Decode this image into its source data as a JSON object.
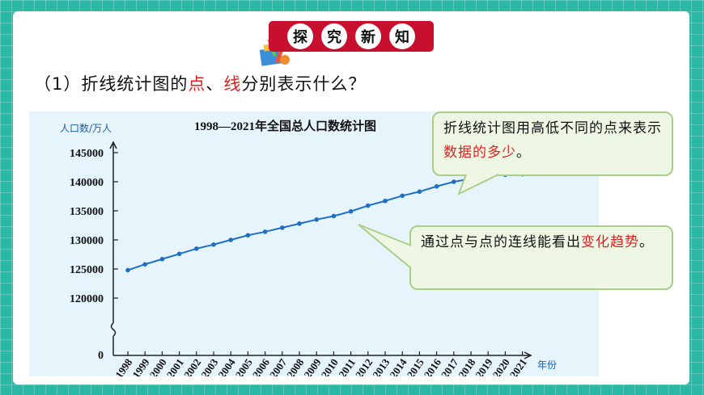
{
  "header": {
    "title_chars": [
      "探",
      "究",
      "新",
      "知"
    ],
    "decor_icon": "school-supplies-icon"
  },
  "question": {
    "prefix": "（1）折线统计图的",
    "highlight_point": "点",
    "separator": "、",
    "highlight_line": "线",
    "suffix": "分别表示什么？"
  },
  "callouts": {
    "points": {
      "text": "折线统计图用高低不同的点来表示",
      "highlight": "数据的多少",
      "end": "。"
    },
    "line": {
      "text": "通过点与点的连线能看出",
      "highlight": "变化趋势",
      "end": "。"
    }
  },
  "colors": {
    "accent_red": "#c8102e",
    "line_blue": "#1f6fc5",
    "background_teal": "#2bb9a6"
  },
  "chart_data": {
    "type": "line",
    "title": "1998—2021年全国总人口数统计图",
    "ylabel": "人口数/万人",
    "xlabel": "年份",
    "y_zero_label": "0",
    "y_ticks": [
      120000,
      125000,
      130000,
      135000,
      140000,
      145000
    ],
    "ylim": [
      120000,
      145000
    ],
    "axis_break": true,
    "categories": [
      "1998",
      "1999",
      "2000",
      "2001",
      "2002",
      "2003",
      "2004",
      "2005",
      "2006",
      "2007",
      "2008",
      "2009",
      "2010",
      "2011",
      "2012",
      "2013",
      "2014",
      "2015",
      "2016",
      "2017",
      "2018",
      "2019",
      "2020",
      "2021"
    ],
    "series": [
      {
        "values": [
          124800,
          125800,
          126700,
          127600,
          128500,
          129200,
          130000,
          130800,
          131400,
          132100,
          132800,
          133500,
          134100,
          134900,
          135900,
          136700,
          137600,
          138300,
          139200,
          140000,
          140500,
          141000,
          141200,
          141300
        ]
      }
    ]
  }
}
